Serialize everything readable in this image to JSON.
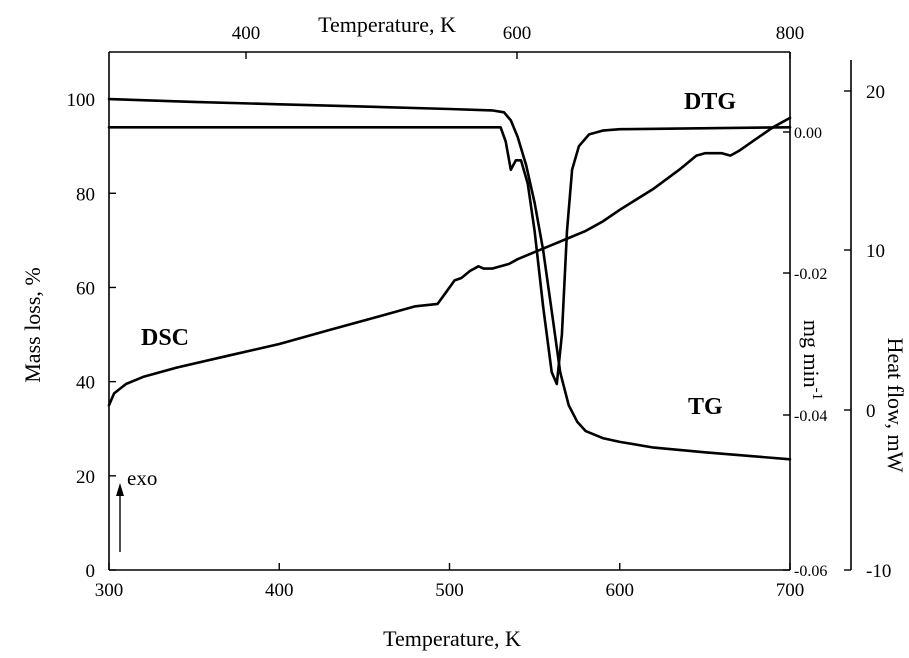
{
  "chart_data": {
    "type": "line",
    "title": "",
    "xlabel": "Temperature, K",
    "x2label": "Temperature, K",
    "ylabel": "Mass loss, %",
    "y2label": "mg min",
    "y2label_sup": "-1",
    "y3label": "Heat flow, mW",
    "xlim": [
      300,
      700
    ],
    "ylim": [
      0,
      110
    ],
    "x_ticks": [
      "300",
      "400",
      "500",
      "600",
      "700"
    ],
    "x2_ticks": [
      "400",
      "600",
      "800"
    ],
    "y_ticks": [
      "0",
      "20",
      "40",
      "60",
      "80",
      "100"
    ],
    "y2_ticks": [
      "0.00",
      "-0.02",
      "-0.04",
      "-0.06"
    ],
    "y3_ticks": [
      "20",
      "10",
      "0",
      "-10"
    ],
    "grid": false,
    "annotations": {
      "dtg": "DTG",
      "dsc": "DSC",
      "tg": "TG",
      "exo": "exo"
    },
    "series": [
      {
        "name": "TG",
        "x": [
          300,
          350,
          400,
          450,
          500,
          525,
          532,
          536,
          540,
          545,
          550,
          555,
          560,
          565,
          570,
          575,
          580,
          590,
          600,
          620,
          650,
          700
        ],
        "y": [
          100,
          99.4,
          98.9,
          98.4,
          97.9,
          97.6,
          97.2,
          95.5,
          92,
          86,
          78,
          68,
          55,
          42,
          35,
          31.5,
          29.5,
          28,
          27.2,
          26,
          25,
          23.5
        ]
      },
      {
        "name": "DTG",
        "x": [
          300,
          400,
          500,
          530,
          533,
          536,
          539,
          542,
          546,
          550,
          555,
          560,
          563,
          566,
          569,
          572,
          576,
          582,
          590,
          600,
          700
        ],
        "y": [
          94,
          94,
          94,
          94,
          91,
          85,
          87,
          87,
          82,
          72,
          56,
          42,
          39.5,
          50,
          72,
          85,
          90,
          92.5,
          93.3,
          93.6,
          94
        ]
      },
      {
        "name": "DSC",
        "x": [
          300,
          303,
          310,
          320,
          340,
          370,
          400,
          430,
          460,
          480,
          493,
          498,
          503,
          507,
          512,
          517,
          520,
          525,
          530,
          535,
          540,
          550,
          560,
          570,
          580,
          585,
          590,
          600,
          620,
          635,
          645,
          650,
          660,
          665,
          670,
          680,
          690,
          700
        ],
        "y": [
          35,
          37.5,
          39.5,
          41,
          43,
          45.5,
          48,
          51,
          54,
          56,
          56.5,
          59,
          61.5,
          62,
          63.5,
          64.5,
          64,
          64,
          64.5,
          65,
          66,
          67.5,
          69,
          70.5,
          72,
          73,
          74,
          76.5,
          81,
          85,
          88,
          88.5,
          88.5,
          88,
          89,
          91.5,
          94,
          96
        ]
      }
    ]
  }
}
